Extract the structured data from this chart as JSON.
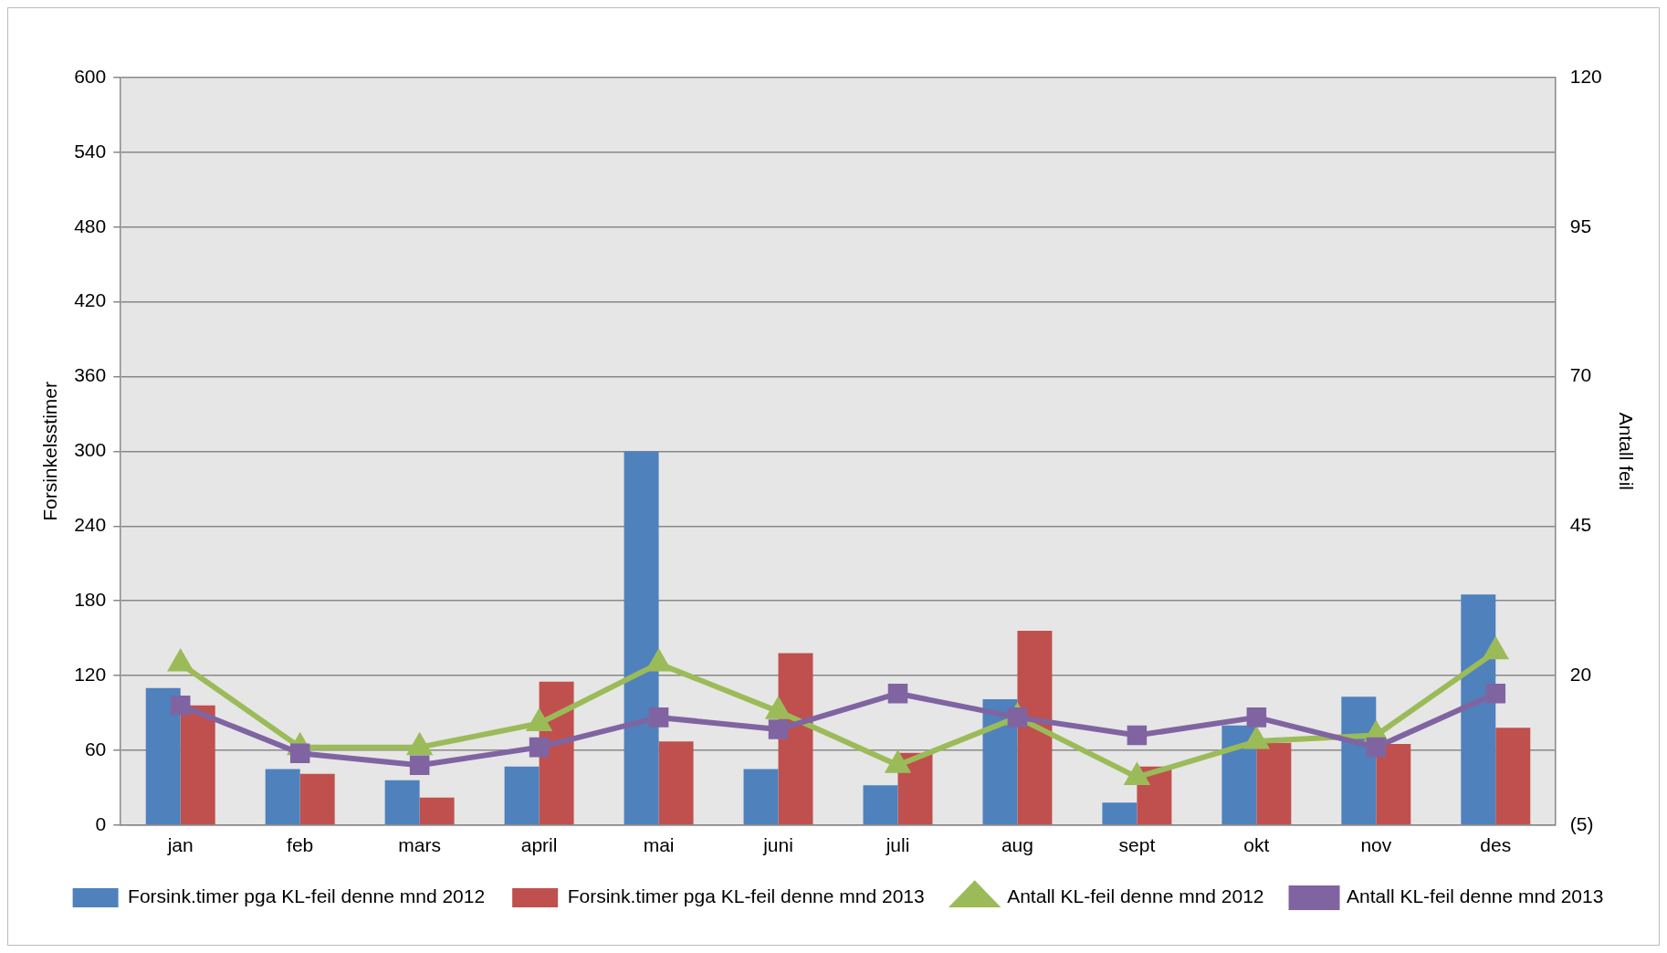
{
  "chart_data": {
    "type": "bar",
    "ylabel": "Forsinkelsstimer",
    "y2label": "Antall feil",
    "categories": [
      "jan",
      "feb",
      "mars",
      "april",
      "mai",
      "juni",
      "juli",
      "aug",
      "sept",
      "okt",
      "nov",
      "des"
    ],
    "series": [
      {
        "name": "Forsink.timer pga KL-feil denne mnd 2012",
        "color": "#4f81bd",
        "values": [
          110,
          45,
          36,
          47,
          300,
          45,
          32,
          101,
          18,
          80,
          103,
          185
        ]
      },
      {
        "name": "Forsink.timer pga KL-feil denne mnd 2013",
        "color": "#c0504d",
        "values": [
          96,
          41,
          22,
          115,
          67,
          138,
          58,
          156,
          47,
          66,
          65,
          78
        ]
      },
      {
        "name": "Antall KL-feil denne mnd 2012",
        "type": "line",
        "axis": "y2",
        "marker": "triangle",
        "color": "#9bbb59",
        "values": [
          22,
          8,
          8,
          12,
          22,
          14,
          5,
          13,
          3,
          9,
          10,
          24
        ]
      },
      {
        "name": "Antall KL-feil denne mnd 2013",
        "type": "line",
        "axis": "y2",
        "marker": "square",
        "color": "#8064a2",
        "values": [
          15,
          7,
          5,
          8,
          13,
          11,
          17,
          13,
          10,
          13,
          8,
          17
        ]
      }
    ],
    "ylim": [
      0,
      600
    ],
    "yticks": [
      0,
      60,
      120,
      180,
      240,
      300,
      360,
      420,
      480,
      540,
      600
    ],
    "y2lim": [
      -5,
      120
    ],
    "y2ticks": [
      {
        "value": -5,
        "label": "(5)"
      },
      20,
      45,
      70,
      95,
      120
    ],
    "grid": "y",
    "legend": "bottom"
  }
}
